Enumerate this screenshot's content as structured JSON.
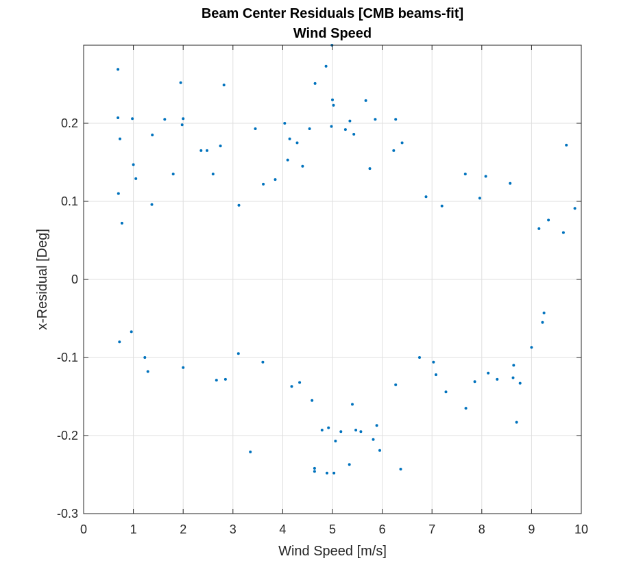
{
  "chart_data": {
    "type": "scatter",
    "title": "Beam Center Residuals [CMB beams-fit]",
    "subtitle": "Wind Speed",
    "xlabel": "Wind Speed [m/s]",
    "ylabel": "x-Residual [Deg]",
    "xlim": [
      0,
      10
    ],
    "ylim": [
      -0.3,
      0.3
    ],
    "xticks": [
      0,
      1,
      2,
      3,
      4,
      5,
      6,
      7,
      8,
      9,
      10
    ],
    "xtick_labels": [
      "0",
      "1",
      "2",
      "3",
      "4",
      "5",
      "6",
      "7",
      "8",
      "9",
      "10"
    ],
    "yticks": [
      -0.3,
      -0.2,
      -0.1,
      0,
      0.1,
      0.2
    ],
    "ytick_labels": [
      "-0.3",
      "-0.2",
      "-0.1",
      "0",
      "0.1",
      "0.2"
    ],
    "grid": true,
    "marker_color": "#0072bd",
    "series": [
      {
        "points": [
          [
            0.69,
            0.269
          ],
          [
            0.69,
            0.207
          ],
          [
            0.73,
            0.18
          ],
          [
            0.98,
            0.206
          ],
          [
            1.38,
            0.185
          ],
          [
            1.95,
            0.252
          ],
          [
            2.0,
            0.206
          ],
          [
            1.98,
            0.198
          ],
          [
            1.63,
            0.205
          ],
          [
            2.82,
            0.249
          ],
          [
            2.75,
            0.171
          ],
          [
            3.45,
            0.193
          ],
          [
            4.04,
            0.2
          ],
          [
            4.14,
            0.18
          ],
          [
            4.29,
            0.175
          ],
          [
            4.54,
            0.193
          ],
          [
            4.65,
            0.251
          ],
          [
            4.87,
            0.273
          ],
          [
            4.99,
            0.3
          ],
          [
            5.0,
            0.23
          ],
          [
            5.02,
            0.223
          ],
          [
            5.35,
            0.203
          ],
          [
            5.67,
            0.229
          ],
          [
            5.86,
            0.205
          ],
          [
            6.27,
            0.205
          ],
          [
            9.7,
            0.172
          ],
          [
            5.26,
            0.192
          ],
          [
            4.98,
            0.196
          ],
          [
            0.7,
            0.11
          ],
          [
            0.77,
            0.072
          ],
          [
            1.0,
            0.147
          ],
          [
            1.05,
            0.129
          ],
          [
            1.37,
            0.096
          ],
          [
            1.8,
            0.135
          ],
          [
            2.36,
            0.165
          ],
          [
            2.48,
            0.165
          ],
          [
            2.6,
            0.135
          ],
          [
            3.12,
            0.095
          ],
          [
            3.61,
            0.122
          ],
          [
            3.85,
            0.128
          ],
          [
            4.1,
            0.153
          ],
          [
            4.4,
            0.145
          ],
          [
            5.43,
            0.186
          ],
          [
            5.75,
            0.142
          ],
          [
            6.23,
            0.165
          ],
          [
            6.4,
            0.175
          ],
          [
            6.88,
            0.106
          ],
          [
            7.2,
            0.094
          ],
          [
            7.67,
            0.135
          ],
          [
            7.96,
            0.104
          ],
          [
            8.08,
            0.132
          ],
          [
            8.57,
            0.123
          ],
          [
            9.34,
            0.076
          ],
          [
            9.87,
            0.091
          ],
          [
            9.64,
            0.06
          ],
          [
            9.15,
            0.065
          ],
          [
            0.72,
            -0.08
          ],
          [
            0.96,
            -0.067
          ],
          [
            1.23,
            -0.1
          ],
          [
            1.29,
            -0.118
          ],
          [
            2.0,
            -0.113
          ],
          [
            2.67,
            -0.129
          ],
          [
            2.85,
            -0.128
          ],
          [
            3.11,
            -0.095
          ],
          [
            3.35,
            -0.221
          ],
          [
            3.6,
            -0.106
          ],
          [
            4.18,
            -0.137
          ],
          [
            4.34,
            -0.132
          ],
          [
            4.59,
            -0.155
          ],
          [
            4.64,
            -0.242
          ],
          [
            4.64,
            -0.246
          ],
          [
            4.79,
            -0.193
          ],
          [
            4.89,
            -0.248
          ],
          [
            4.92,
            -0.19
          ],
          [
            5.03,
            -0.248
          ],
          [
            5.06,
            -0.207
          ],
          [
            5.17,
            -0.195
          ],
          [
            5.34,
            -0.237
          ],
          [
            5.47,
            -0.193
          ],
          [
            5.57,
            -0.195
          ],
          [
            5.82,
            -0.205
          ],
          [
            5.89,
            -0.187
          ],
          [
            5.95,
            -0.219
          ],
          [
            6.37,
            -0.243
          ],
          [
            6.27,
            -0.135
          ],
          [
            5.4,
            -0.16
          ],
          [
            7.08,
            -0.122
          ],
          [
            7.28,
            -0.144
          ],
          [
            7.68,
            -0.165
          ],
          [
            7.86,
            -0.131
          ],
          [
            8.13,
            -0.12
          ],
          [
            8.31,
            -0.128
          ],
          [
            8.7,
            -0.183
          ],
          [
            8.63,
            -0.126
          ],
          [
            8.77,
            -0.133
          ],
          [
            9.0,
            -0.087
          ],
          [
            9.25,
            -0.043
          ],
          [
            9.22,
            -0.055
          ],
          [
            8.64,
            -0.11
          ],
          [
            7.03,
            -0.106
          ],
          [
            6.75,
            -0.1
          ]
        ]
      }
    ]
  }
}
